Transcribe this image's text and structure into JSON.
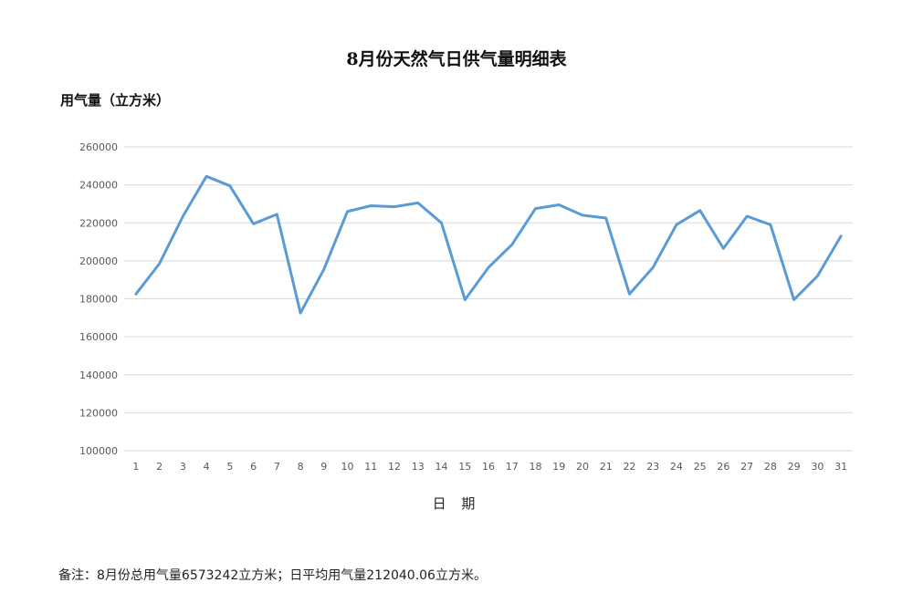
{
  "chart_data": {
    "type": "line",
    "title": "8月份天然气日供气量明细表",
    "ylabel": "用气量（立方米）",
    "xlabel": "日 期",
    "ylim": [
      100000,
      260000
    ],
    "yticks": [
      100000,
      120000,
      140000,
      160000,
      180000,
      200000,
      220000,
      240000,
      260000
    ],
    "categories": [
      "1",
      "2",
      "3",
      "4",
      "5",
      "6",
      "7",
      "8",
      "9",
      "10",
      "11",
      "12",
      "13",
      "14",
      "15",
      "16",
      "17",
      "18",
      "19",
      "20",
      "21",
      "22",
      "23",
      "24",
      "25",
      "26",
      "27",
      "28",
      "29",
      "30",
      "31"
    ],
    "series": [
      {
        "values": [
          182500,
          198500,
          223500,
          244500,
          239500,
          219500,
          224500,
          172500,
          195500,
          226000,
          229000,
          228500,
          230500,
          220000,
          179500,
          196500,
          208500,
          227500,
          229500,
          224000,
          222500,
          182500,
          196500,
          219000,
          226500,
          206500,
          223500,
          219000,
          179500,
          192000,
          213000
        ],
        "color": "#5B9BD5"
      }
    ],
    "grid": true,
    "legend": "none"
  },
  "note": "备注：8月份总用气量6573242立方米；日平均用气量212040.06立方米。"
}
